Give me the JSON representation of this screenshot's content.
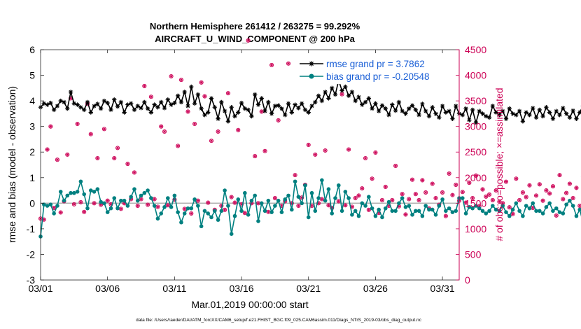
{
  "chart_data": {
    "type": "line",
    "title_line1": "Northern Hemisphere 261412 / 263275 = 99.292%",
    "title_line2": "AIRCRAFT_U_WIND_COMPONENT @ 200 hPa",
    "xlabel": "Mar.01,2019 00:00:00 start",
    "ylabel_left": "rmse and bias (model - observation)",
    "ylabel_right": "# of obs: o=possible; ×=assimilated",
    "footer": "data file: /Users/raeder/DAI/ATM_forcXX/CAM6_setup/f.e21.FHIST_BGC.f09_025.CAM6assim.011/Diags_NTrS_2019-03/obs_diag_output.nc",
    "x_tick_labels": [
      "03/01",
      "03/06",
      "03/11",
      "03/16",
      "03/21",
      "03/26",
      "03/31"
    ],
    "x_tick_days": [
      0,
      5,
      10,
      15,
      20,
      25,
      30
    ],
    "xlim": [
      0,
      31.25
    ],
    "ylim_left": [
      -3,
      6
    ],
    "y_ticks_left": [
      "-3",
      "-2",
      "-1",
      "0",
      "1",
      "2",
      "3",
      "4",
      "5",
      "6"
    ],
    "ylim_right": [
      0,
      4500
    ],
    "y_ticks_right": [
      "0",
      "500",
      "1000",
      "1500",
      "2000",
      "2500",
      "3000",
      "3500",
      "4000",
      "4500"
    ],
    "step_days": 0.25,
    "legend": [
      {
        "label": "rmse grand pr = 3.7862",
        "color": "#000000"
      },
      {
        "label": "bias grand pr = -0.20548",
        "color": "#008080"
      }
    ],
    "colors": {
      "rmse": "#000000",
      "bias": "#008080",
      "obs": "#cc0055",
      "zero_line": "#b3b3b3",
      "right_axis": "#cc0055"
    },
    "series": [
      {
        "name": "rmse",
        "values": [
          3.75,
          3.9,
          3.85,
          3.92,
          3.65,
          3.8,
          4.0,
          3.95,
          3.7,
          4.35,
          3.9,
          3.85,
          3.75,
          3.65,
          3.95,
          3.55,
          3.8,
          3.88,
          3.7,
          4.0,
          3.92,
          3.65,
          4.05,
          3.78,
          3.95,
          3.55,
          3.85,
          3.9,
          3.65,
          3.8,
          3.72,
          3.95,
          3.7,
          3.55,
          3.85,
          3.75,
          3.95,
          3.72,
          4.05,
          3.85,
          3.92,
          4.2,
          3.95,
          4.35,
          3.8,
          4.55,
          3.9,
          4.25,
          3.7,
          3.45,
          3.55,
          4.1,
          3.75,
          3.3,
          3.95,
          3.6,
          3.2,
          3.75,
          3.4,
          3.55,
          3.92,
          3.7,
          3.65,
          3.4,
          4.25,
          3.85,
          4.1,
          3.6,
          3.95,
          3.5,
          3.8,
          3.82,
          3.7,
          3.45,
          3.9,
          3.55,
          3.85,
          3.72,
          3.9,
          3.65,
          3.55,
          3.8,
          3.95,
          4.2,
          4.0,
          4.35,
          4.1,
          4.5,
          4.25,
          4.8,
          4.4,
          4.55,
          4.2,
          4.35,
          4.0,
          4.15,
          3.85,
          3.95,
          4.1,
          3.7,
          3.9,
          3.6,
          3.82,
          3.7,
          3.45,
          3.85,
          3.62,
          3.95,
          3.6,
          3.5,
          3.7,
          3.82,
          3.65,
          3.45,
          3.88,
          3.6,
          3.4,
          3.75,
          3.5,
          3.35,
          3.8,
          3.55,
          3.6,
          3.3,
          3.8,
          3.5,
          3.45,
          3.7,
          3.25,
          3.65,
          3.15,
          3.6,
          3.5,
          3.4,
          3.35,
          3.8,
          3.55,
          3.45,
          3.6,
          3.3,
          3.7,
          3.5,
          3.45,
          3.6,
          3.2,
          3.55,
          3.45,
          3.72,
          3.35,
          3.65,
          3.4,
          3.75,
          3.55,
          3.3,
          3.6,
          3.45,
          3.72,
          3.5,
          3.35,
          3.62,
          3.3,
          3.55,
          3.8,
          3.45,
          3.68,
          3.4,
          3.52,
          3.6,
          3.38,
          3.5,
          3.85,
          3.45,
          3.68,
          3.3,
          3.52,
          3.7,
          3.4,
          3.58,
          3.85,
          3.6,
          3.25,
          3.5,
          3.38,
          3.55,
          3.3,
          3.45,
          3.6,
          3.2,
          3.72,
          3.4,
          3.52,
          3.35,
          3.95,
          3.4,
          3.55,
          3.15,
          3.42,
          3.65,
          3.3,
          3.5,
          3.1,
          3.45,
          3.55,
          3.35,
          3.65,
          3.3,
          3.55,
          3.2,
          3.4,
          3.58,
          3.25,
          4.0,
          3.45,
          3.6,
          3.35,
          3.1,
          3.55,
          3.4,
          3.22,
          3.45,
          3.3,
          3.55,
          3.2,
          4.05,
          3.5,
          3.3,
          3.15,
          3.55,
          3.45,
          3.35,
          3.4,
          3.3
        ]
      },
      {
        "name": "bias",
        "values": [
          -1.3,
          -0.05,
          -0.1,
          -0.05,
          -0.4,
          -0.1,
          0.45,
          0.1,
          0.3,
          0.4,
          0.4,
          0.45,
          0.85,
          0.35,
          -0.2,
          0.5,
          0.45,
          0.55,
          0.05,
          0.0,
          -0.35,
          -0.2,
          0.2,
          -0.2,
          0.1,
          0.1,
          -0.1,
          0.25,
          0.55,
          0.1,
          0.3,
          0.4,
          0.5,
          0.2,
          -0.1,
          -0.6,
          -0.4,
          -0.15,
          0.2,
          -0.15,
          0.3,
          -0.35,
          -0.75,
          -0.4,
          -0.2,
          -0.2,
          0.15,
          -0.1,
          -0.9,
          -0.3,
          -0.4,
          -0.55,
          -0.3,
          -0.65,
          -0.3,
          0.5,
          -0.1,
          -1.2,
          -0.5,
          0.15,
          -0.3,
          0.4,
          -0.45,
          0.1,
          0.3,
          -0.7,
          0.0,
          -0.3,
          0.1,
          -0.35,
          -0.1,
          0.1,
          -0.35,
          0.15,
          0.3,
          -0.25,
          0.85,
          0.25,
          0.0,
          0.7,
          -0.55,
          0.4,
          -0.3,
          0.2,
          0.9,
          0.1,
          0.55,
          -0.4,
          0.2,
          0.7,
          -0.3,
          0.45,
          0.2,
          -0.45,
          -0.3,
          -0.5,
          0.0,
          -0.1,
          0.25,
          -0.2,
          -0.5,
          -0.25,
          -0.55,
          -0.2,
          0.05,
          -0.3,
          -0.3,
          0.0,
          0.2,
          -0.15,
          -0.1,
          -0.45,
          -0.3,
          -0.3,
          -0.5,
          -0.1,
          -0.25,
          -0.25,
          -0.45,
          -0.1,
          0.15,
          -0.3,
          -0.2,
          -0.35,
          -0.3,
          0.2,
          0.2,
          -0.4,
          -0.15,
          -0.2,
          -0.1,
          -0.2,
          -0.3,
          -0.4,
          -0.3,
          -0.1,
          -0.25,
          -0.3,
          -0.1,
          -0.35,
          -0.5,
          -0.25,
          0.0,
          -0.3,
          -0.5,
          -0.1,
          -0.2,
          0.0,
          -0.3,
          -0.3,
          -0.4,
          -0.15,
          0.0,
          -0.3,
          -0.2,
          -0.35,
          -0.4,
          -0.05,
          0.1,
          -0.1,
          -0.5,
          -0.25,
          -0.75,
          0.15,
          -0.3,
          -0.25,
          -0.55,
          -0.4,
          -0.1,
          -0.2,
          -0.05,
          -0.2,
          0.1,
          -0.05,
          -0.3,
          -0.1,
          -0.2,
          -0.45,
          0.05,
          -0.3,
          -0.2,
          -0.15,
          0.0,
          -0.25,
          0.0,
          0.1,
          -0.4,
          0.1,
          0.05,
          0.1,
          0.0,
          -0.3,
          -0.2,
          -0.5,
          -0.1,
          -0.65,
          -0.35,
          -0.45,
          -0.1,
          -0.35,
          -0.4,
          -0.4,
          -0.15,
          -0.2,
          -0.55,
          -0.45,
          -0.1,
          0.2,
          -0.6,
          0.2,
          0.0,
          0.3,
          0.2,
          -0.2,
          -0.4,
          -0.7,
          0.3,
          -0.2,
          -0.1,
          -0.3,
          0.15,
          0.2,
          -0.1,
          -0.4,
          -0.5,
          -0.25,
          0.2,
          0.0,
          -0.15,
          -0.2,
          -0.3
        ]
      },
      {
        "name": "obs",
        "values": [
          1200,
          1180,
          2550,
          3000,
          1410,
          2350,
          1320,
          1540,
          2450,
          3550,
          1480,
          3050,
          1520,
          1330,
          3440,
          2850,
          1500,
          2380,
          1470,
          2950,
          1550,
          1480,
          2380,
          2580,
          1390,
          1500,
          2270,
          1580,
          2100,
          1450,
          1580,
          3790,
          1470,
          3580,
          1580,
          1430,
          3000,
          2900,
          1460,
          3980,
          1570,
          2620,
          3910,
          1390,
          3290,
          1300,
          3050,
          1550,
          3860,
          3590,
          1510,
          2720,
          1370,
          2900,
          1450,
          1370,
          3650,
          1620,
          1510,
          2930,
          1480,
          1310,
          4680,
          1500,
          2420,
          1500,
          3290,
          2520,
          1330,
          4200,
          1600,
          3120,
          1450,
          1540,
          4230,
          1500,
          2050,
          1450,
          1610,
          1860,
          2640,
          1450,
          2450,
          1500,
          1580,
          2530,
          1460,
          1410,
          4020,
          1540,
          3630,
          1460,
          2550,
          1430,
          1600,
          1650,
          1790,
          2380,
          1370,
          1980,
          2490,
          1310,
          1560,
          1820,
          1450,
          1560,
          2230,
          1440,
          1680,
          1280,
          1580,
          1960,
          1680,
          1560,
          1950,
          1710,
          1400,
          1880,
          1600,
          1470,
          1710,
          1250,
          2080,
          1660,
          1860,
          1550,
          1720,
          1510,
          1900,
          1600,
          2040,
          1440,
          1770,
          1630,
          1670,
          1560,
          1750,
          1530,
          1500,
          1920,
          1420,
          1290,
          1980,
          1560,
          1710,
          1620,
          1850,
          1410,
          1650,
          1870,
          1550,
          1750,
          1690,
          1830,
          1260,
          2050,
          1580,
          1700,
          1880,
          1600,
          1800,
          1450,
          2020,
          1550,
          2080,
          1600,
          1730,
          1530,
          2160,
          1640,
          1690,
          1450,
          1840,
          1630,
          2040,
          1600,
          1840,
          2120,
          1780,
          1710,
          1610,
          1840,
          1620,
          1950,
          1750,
          1540,
          2130,
          1660,
          1510,
          2040,
          1480,
          1840,
          1640,
          1770,
          1540,
          1900,
          1680,
          1720,
          1580,
          1960,
          1790,
          1700,
          2050,
          1560,
          1920,
          1460,
          1800,
          1850,
          1620,
          1950,
          1680,
          1700,
          1390,
          1880,
          1840,
          1530,
          1720,
          1620,
          1940,
          1520,
          1880,
          1800,
          1600,
          1710,
          2220,
          1580,
          2010,
          1640,
          1860,
          1450,
          1820,
          2580,
          1640,
          1900,
          1500,
          0
        ]
      }
    ]
  }
}
